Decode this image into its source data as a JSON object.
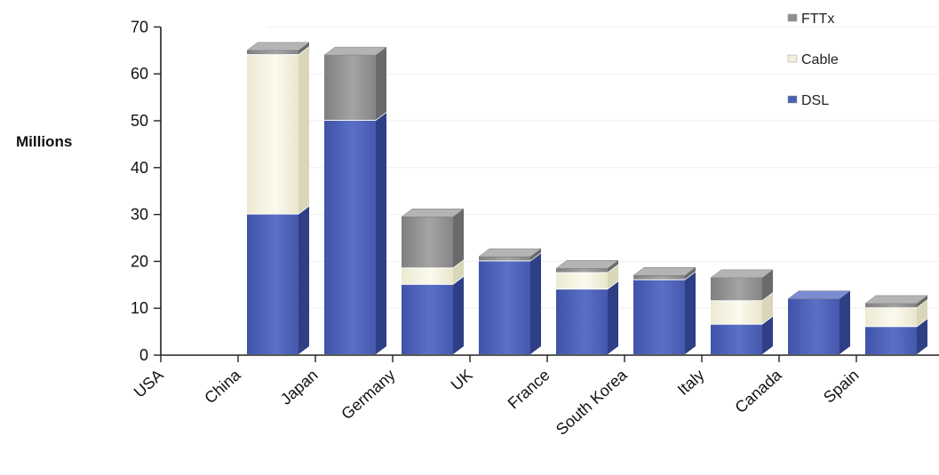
{
  "chart_data": {
    "type": "bar",
    "stacked": true,
    "ylabel": "Millions",
    "xlabel": "",
    "title": "",
    "ylim": [
      0,
      70
    ],
    "yticks": [
      0,
      10,
      20,
      30,
      40,
      50,
      60,
      70
    ],
    "grid": true,
    "legend_position": "top-right",
    "categories": [
      "USA",
      "China",
      "Japan",
      "Germany",
      "UK",
      "France",
      "South Korea",
      "Italy",
      "Canada",
      "Spain"
    ],
    "series": [
      {
        "name": "DSL",
        "color": "#4a5fb4",
        "values": [
          0,
          30,
          50,
          15,
          20,
          14,
          16,
          6.5,
          12,
          6
        ]
      },
      {
        "name": "Cable",
        "color": "#f3f1dc",
        "values": [
          0,
          34,
          0,
          3.5,
          0,
          3.5,
          0,
          5,
          0,
          4
        ]
      },
      {
        "name": "FTTx",
        "color": "#8e8e8e",
        "values": [
          0,
          1,
          14,
          11,
          1,
          1,
          1,
          5,
          0,
          1
        ]
      }
    ]
  }
}
